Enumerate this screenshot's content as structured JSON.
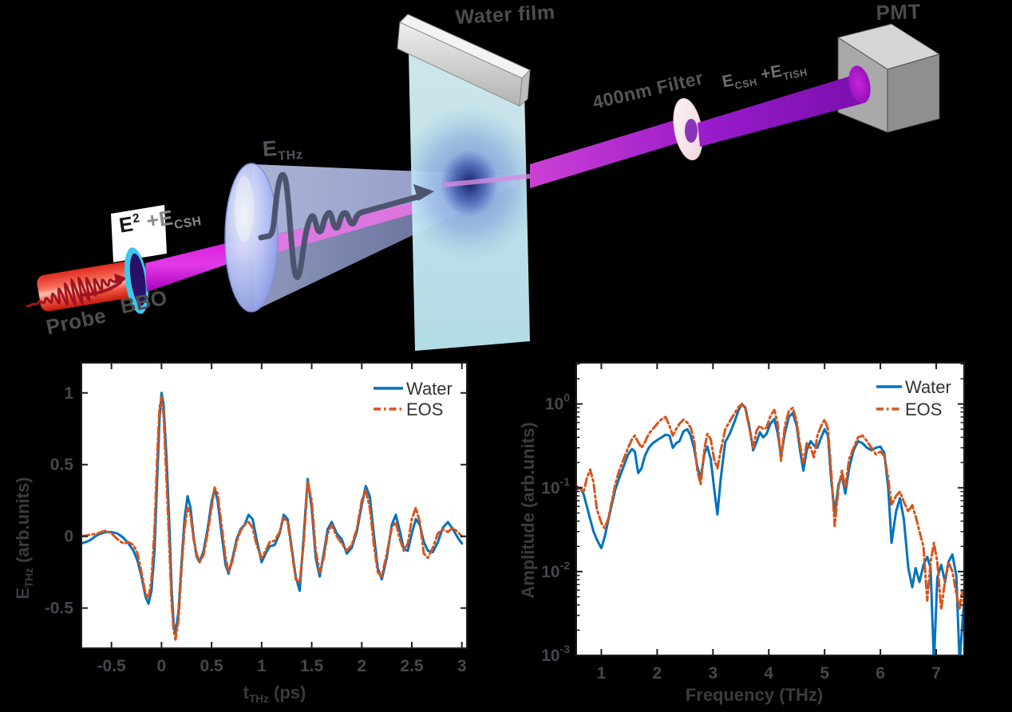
{
  "diagram": {
    "labels": {
      "probe": "Probe",
      "bbo": "BBO",
      "sh_gen": {
        "e": "E",
        "sup": "2",
        "plus": " +E",
        "sub": "CSH"
      },
      "thz": {
        "e": "E",
        "sub": "THz"
      },
      "water_film": "Water film",
      "filter": "400nm Filter",
      "signal": {
        "e1": "E",
        "sub1": "CSH",
        "plus": " +E",
        "sub2": "TISH"
      },
      "pmt": "PMT"
    }
  },
  "chart_data": [
    {
      "type": "line",
      "title": "",
      "xlabel": {
        "main": "t",
        "sub": "THz",
        "unit": " (ps)"
      },
      "ylabel": {
        "main": "E",
        "sub": "THz",
        "unit": " (arb.units)"
      },
      "xlim": [
        -0.8,
        3.05
      ],
      "ylim": [
        -0.78,
        1.21
      ],
      "yscale": "linear",
      "grid": false,
      "legend_position": "top-right",
      "xticks": [
        -0.5,
        0,
        0.5,
        1,
        1.5,
        2,
        2.5,
        3
      ],
      "xtick_labels": [
        "-0.5",
        "0",
        "0.5",
        "1",
        "1.5",
        "2",
        "2.5",
        "3"
      ],
      "yticks": [
        -0.5,
        0,
        0.5,
        1
      ],
      "ytick_labels": [
        "-0.5",
        "0",
        "0.5",
        "1"
      ],
      "series": [
        {
          "name": "Water",
          "color": "#0072BD",
          "style": "solid",
          "x": [
            -0.8,
            -0.72,
            -0.64,
            -0.56,
            -0.5,
            -0.44,
            -0.38,
            -0.33,
            -0.28,
            -0.24,
            -0.2,
            -0.16,
            -0.13,
            -0.1,
            -0.07,
            -0.04,
            -0.02,
            0.0,
            0.02,
            0.05,
            0.08,
            0.1,
            0.12,
            0.14,
            0.17,
            0.2,
            0.23,
            0.26,
            0.29,
            0.32,
            0.35,
            0.38,
            0.42,
            0.46,
            0.5,
            0.53,
            0.56,
            0.6,
            0.64,
            0.67,
            0.71,
            0.75,
            0.79,
            0.83,
            0.87,
            0.91,
            0.95,
            1.0,
            1.04,
            1.08,
            1.13,
            1.18,
            1.22,
            1.26,
            1.3,
            1.34,
            1.38,
            1.42,
            1.46,
            1.5,
            1.54,
            1.58,
            1.62,
            1.66,
            1.7,
            1.75,
            1.8,
            1.85,
            1.9,
            1.95,
            2.0,
            2.04,
            2.08,
            2.12,
            2.16,
            2.2,
            2.25,
            2.3,
            2.34,
            2.38,
            2.42,
            2.46,
            2.5,
            2.54,
            2.58,
            2.62,
            2.66,
            2.71,
            2.76,
            2.81,
            2.86,
            2.91,
            2.96,
            3.0
          ],
          "y": [
            -0.05,
            -0.03,
            0.01,
            0.03,
            0.03,
            0.02,
            -0.01,
            -0.05,
            -0.1,
            -0.17,
            -0.28,
            -0.42,
            -0.47,
            -0.38,
            -0.1,
            0.45,
            0.82,
            1.0,
            0.92,
            0.55,
            0.05,
            -0.35,
            -0.6,
            -0.68,
            -0.52,
            -0.18,
            0.12,
            0.28,
            0.2,
            0.0,
            -0.14,
            -0.18,
            -0.1,
            0.05,
            0.24,
            0.33,
            0.25,
            0.02,
            -0.2,
            -0.26,
            -0.15,
            -0.02,
            0.05,
            0.08,
            0.15,
            0.12,
            -0.02,
            -0.18,
            -0.12,
            -0.07,
            -0.06,
            0.02,
            0.15,
            0.12,
            -0.08,
            -0.28,
            -0.38,
            0.0,
            0.4,
            0.2,
            -0.15,
            -0.28,
            -0.12,
            0.05,
            0.1,
            0.02,
            -0.02,
            -0.12,
            -0.08,
            0.03,
            0.22,
            0.35,
            0.28,
            0.02,
            -0.22,
            -0.3,
            -0.15,
            0.08,
            0.15,
            0.04,
            -0.09,
            -0.1,
            0.02,
            0.12,
            0.08,
            -0.04,
            -0.1,
            -0.11,
            -0.04,
            0.06,
            0.1,
            0.05,
            -0.01,
            -0.05
          ]
        },
        {
          "name": "EOS",
          "color": "#D95319",
          "style": "dashdot",
          "x": [
            -0.8,
            -0.72,
            -0.64,
            -0.56,
            -0.5,
            -0.44,
            -0.38,
            -0.33,
            -0.28,
            -0.24,
            -0.2,
            -0.16,
            -0.13,
            -0.1,
            -0.07,
            -0.04,
            -0.02,
            0.0,
            0.02,
            0.05,
            0.08,
            0.1,
            0.12,
            0.14,
            0.17,
            0.2,
            0.23,
            0.26,
            0.29,
            0.32,
            0.35,
            0.38,
            0.42,
            0.46,
            0.5,
            0.53,
            0.56,
            0.6,
            0.64,
            0.67,
            0.71,
            0.75,
            0.79,
            0.83,
            0.87,
            0.91,
            0.95,
            1.0,
            1.04,
            1.08,
            1.13,
            1.18,
            1.22,
            1.26,
            1.3,
            1.34,
            1.38,
            1.42,
            1.46,
            1.5,
            1.54,
            1.58,
            1.62,
            1.66,
            1.7,
            1.75,
            1.8,
            1.85,
            1.9,
            1.95,
            2.0,
            2.04,
            2.08,
            2.12,
            2.16,
            2.2,
            2.25,
            2.3,
            2.34,
            2.38,
            2.42,
            2.46,
            2.5,
            2.54,
            2.58,
            2.62,
            2.66,
            2.71,
            2.76,
            2.81,
            2.86,
            2.91,
            2.96,
            3.0
          ],
          "y": [
            0.0,
            0.01,
            0.02,
            0.04,
            0.02,
            -0.02,
            -0.05,
            -0.04,
            -0.06,
            -0.12,
            -0.25,
            -0.4,
            -0.43,
            -0.3,
            0.05,
            0.6,
            0.9,
            0.97,
            0.85,
            0.4,
            -0.1,
            -0.45,
            -0.65,
            -0.72,
            -0.58,
            -0.22,
            0.05,
            0.2,
            0.15,
            -0.02,
            -0.12,
            -0.18,
            -0.13,
            0.02,
            0.2,
            0.34,
            0.3,
            0.08,
            -0.15,
            -0.25,
            -0.17,
            -0.04,
            0.04,
            0.08,
            0.1,
            0.06,
            -0.06,
            -0.15,
            -0.1,
            -0.04,
            -0.03,
            0.03,
            0.13,
            0.1,
            -0.1,
            -0.3,
            -0.32,
            -0.05,
            0.38,
            0.25,
            -0.1,
            -0.25,
            -0.15,
            0.02,
            0.08,
            0.0,
            -0.05,
            -0.1,
            -0.06,
            0.05,
            0.25,
            0.32,
            0.2,
            -0.05,
            -0.25,
            -0.28,
            -0.12,
            0.06,
            0.1,
            -0.02,
            -0.1,
            -0.05,
            0.12,
            0.2,
            0.1,
            -0.12,
            -0.15,
            -0.08,
            0.02,
            0.05,
            0.03,
            0.06,
            0.03,
            0.0
          ]
        }
      ]
    },
    {
      "type": "line",
      "title": "",
      "xlabel": {
        "main": "Frequency (THz)",
        "sub": "",
        "unit": ""
      },
      "ylabel": {
        "main": "Amplitude (arb.units)",
        "sub": "",
        "unit": ""
      },
      "xlim": [
        0.55,
        7.5
      ],
      "ylim": [
        0.001,
        3.1
      ],
      "yscale": "log",
      "grid": false,
      "legend_position": "top-right",
      "xticks": [
        1,
        2,
        3,
        4,
        5,
        6,
        7
      ],
      "xtick_labels": [
        "1",
        "2",
        "3",
        "4",
        "5",
        "6",
        "7"
      ],
      "ytick_exponents": [
        0,
        -1,
        -2,
        -3
      ],
      "series": [
        {
          "name": "Water",
          "color": "#0072BD",
          "style": "solid",
          "x": [
            0.55,
            0.62,
            0.68,
            0.74,
            0.8,
            0.86,
            0.92,
            1.0,
            1.06,
            1.12,
            1.18,
            1.25,
            1.32,
            1.4,
            1.48,
            1.55,
            1.6,
            1.66,
            1.72,
            1.78,
            1.85,
            1.92,
            2.0,
            2.08,
            2.15,
            2.22,
            2.28,
            2.34,
            2.4,
            2.47,
            2.54,
            2.6,
            2.66,
            2.72,
            2.78,
            2.85,
            2.9,
            2.96,
            3.02,
            3.08,
            3.14,
            3.22,
            3.3,
            3.38,
            3.46,
            3.52,
            3.58,
            3.65,
            3.72,
            3.78,
            3.84,
            3.9,
            3.96,
            4.03,
            4.1,
            4.16,
            4.22,
            4.29,
            4.36,
            4.43,
            4.5,
            4.56,
            4.62,
            4.68,
            4.75,
            4.81,
            4.87,
            4.94,
            5.0,
            5.06,
            5.12,
            5.18,
            5.25,
            5.31,
            5.37,
            5.44,
            5.52,
            5.6,
            5.68,
            5.76,
            5.84,
            5.92,
            6.0,
            6.07,
            6.14,
            6.2,
            6.28,
            6.35,
            6.42,
            6.5,
            6.57,
            6.63,
            6.7,
            6.77,
            6.84,
            6.9,
            6.96,
            7.02,
            7.09,
            7.16,
            7.22,
            7.29,
            7.36,
            7.42,
            7.46,
            7.5
          ],
          "y": [
            0.095,
            0.1,
            0.085,
            0.06,
            0.042,
            0.03,
            0.024,
            0.019,
            0.026,
            0.04,
            0.06,
            0.095,
            0.13,
            0.18,
            0.25,
            0.29,
            0.27,
            0.15,
            0.17,
            0.24,
            0.3,
            0.34,
            0.37,
            0.4,
            0.43,
            0.42,
            0.3,
            0.34,
            0.36,
            0.47,
            0.5,
            0.42,
            0.3,
            0.18,
            0.13,
            0.26,
            0.31,
            0.22,
            0.1,
            0.048,
            0.13,
            0.35,
            0.44,
            0.6,
            0.85,
            1.0,
            0.9,
            0.55,
            0.28,
            0.35,
            0.46,
            0.4,
            0.44,
            0.58,
            0.66,
            0.45,
            0.24,
            0.45,
            0.7,
            0.78,
            0.55,
            0.28,
            0.16,
            0.28,
            0.36,
            0.32,
            0.3,
            0.4,
            0.5,
            0.42,
            0.12,
            0.05,
            0.11,
            0.14,
            0.085,
            0.17,
            0.28,
            0.36,
            0.34,
            0.3,
            0.28,
            0.3,
            0.31,
            0.26,
            0.1,
            0.022,
            0.052,
            0.075,
            0.042,
            0.011,
            0.0065,
            0.011,
            0.0075,
            0.012,
            0.015,
            0.011,
            0.0008,
            0.0085,
            0.012,
            0.0075,
            0.013,
            0.016,
            0.009,
            0.0008,
            0.002,
            0.0045
          ]
        },
        {
          "name": "EOS",
          "color": "#D95319",
          "style": "dashdot",
          "x": [
            0.55,
            0.62,
            0.68,
            0.74,
            0.8,
            0.86,
            0.92,
            1.0,
            1.06,
            1.12,
            1.18,
            1.25,
            1.32,
            1.4,
            1.48,
            1.55,
            1.6,
            1.66,
            1.72,
            1.78,
            1.85,
            1.92,
            2.0,
            2.08,
            2.15,
            2.22,
            2.28,
            2.34,
            2.4,
            2.47,
            2.54,
            2.6,
            2.66,
            2.72,
            2.78,
            2.85,
            2.9,
            2.96,
            3.02,
            3.08,
            3.14,
            3.22,
            3.3,
            3.38,
            3.46,
            3.52,
            3.58,
            3.65,
            3.72,
            3.78,
            3.84,
            3.9,
            3.96,
            4.03,
            4.1,
            4.16,
            4.22,
            4.29,
            4.36,
            4.43,
            4.5,
            4.56,
            4.62,
            4.68,
            4.75,
            4.81,
            4.87,
            4.94,
            5.0,
            5.06,
            5.12,
            5.18,
            5.25,
            5.31,
            5.37,
            5.44,
            5.52,
            5.6,
            5.68,
            5.76,
            5.84,
            5.92,
            6.0,
            6.07,
            6.14,
            6.2,
            6.28,
            6.35,
            6.42,
            6.5,
            6.57,
            6.63,
            6.7,
            6.77,
            6.84,
            6.9,
            6.96,
            7.02,
            7.09,
            7.16,
            7.22,
            7.29,
            7.36,
            7.42,
            7.46,
            7.5
          ],
          "y": [
            0.105,
            0.098,
            0.088,
            0.13,
            0.165,
            0.115,
            0.055,
            0.038,
            0.033,
            0.042,
            0.065,
            0.11,
            0.16,
            0.22,
            0.3,
            0.38,
            0.42,
            0.35,
            0.3,
            0.35,
            0.44,
            0.5,
            0.58,
            0.66,
            0.7,
            0.55,
            0.42,
            0.5,
            0.58,
            0.65,
            0.6,
            0.52,
            0.38,
            0.16,
            0.11,
            0.3,
            0.44,
            0.38,
            0.22,
            0.17,
            0.28,
            0.5,
            0.62,
            0.76,
            0.92,
            1.0,
            0.88,
            0.52,
            0.3,
            0.48,
            0.55,
            0.5,
            0.52,
            0.72,
            0.85,
            0.58,
            0.21,
            0.55,
            0.82,
            0.9,
            0.62,
            0.32,
            0.2,
            0.34,
            0.3,
            0.23,
            0.42,
            0.55,
            0.65,
            0.5,
            0.15,
            0.035,
            0.1,
            0.16,
            0.1,
            0.22,
            0.3,
            0.4,
            0.42,
            0.36,
            0.3,
            0.25,
            0.27,
            0.24,
            0.13,
            0.062,
            0.08,
            0.09,
            0.068,
            0.052,
            0.062,
            0.046,
            0.03,
            0.02,
            0.0045,
            0.013,
            0.022,
            0.013,
            0.0035,
            0.008,
            0.013,
            0.01,
            0.0055,
            0.0035,
            0.006,
            0.004
          ]
        }
      ]
    }
  ]
}
